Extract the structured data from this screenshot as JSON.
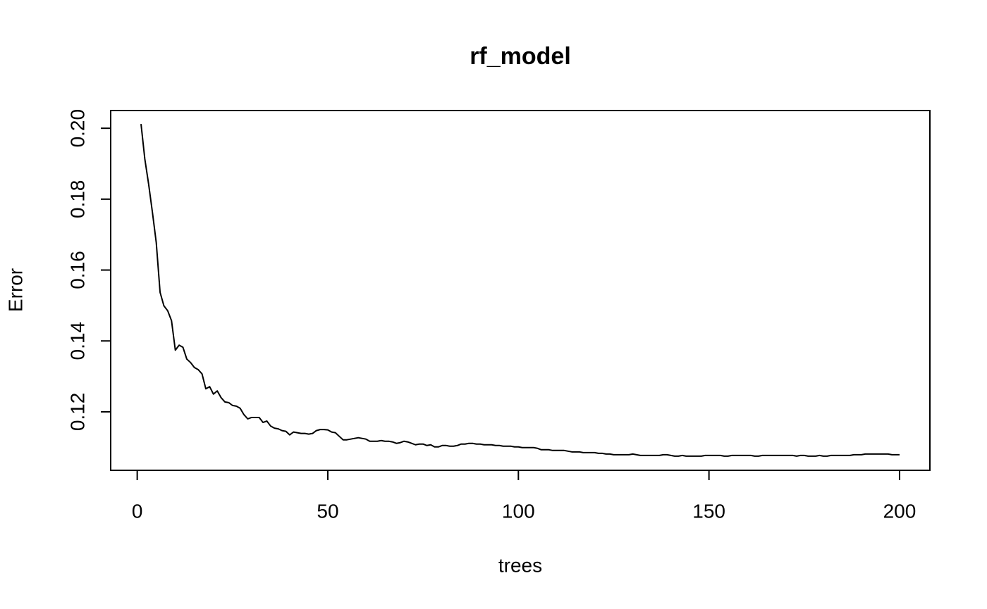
{
  "chart_data": {
    "type": "line",
    "title": "rf_model",
    "x_label": "trees",
    "y_label": "Error",
    "color": "#000000",
    "xlim": [
      -6.96,
      207.96
    ],
    "ylim": [
      0.1035,
      0.205
    ],
    "xticks": [
      0,
      50,
      100,
      150,
      200
    ],
    "yticks": [
      0.12,
      0.14,
      0.16,
      0.18,
      {
        "value": 0.2,
        "label": "0.20"
      }
    ],
    "x": [
      1,
      2,
      3,
      4,
      5,
      6,
      7,
      8,
      9,
      10,
      11,
      12,
      13,
      14,
      15,
      16,
      17,
      18,
      19,
      20,
      21,
      22,
      23,
      24,
      25,
      26,
      27,
      28,
      29,
      30,
      31,
      32,
      33,
      34,
      35,
      36,
      37,
      38,
      39,
      40,
      41,
      42,
      43,
      44,
      45,
      46,
      47,
      48,
      49,
      50,
      51,
      52,
      53,
      54,
      55,
      56,
      57,
      58,
      59,
      60,
      61,
      62,
      63,
      64,
      65,
      66,
      67,
      68,
      69,
      70,
      71,
      72,
      73,
      74,
      75,
      76,
      77,
      78,
      79,
      80,
      81,
      82,
      83,
      84,
      85,
      86,
      87,
      88,
      89,
      90,
      91,
      92,
      93,
      94,
      95,
      96,
      97,
      98,
      99,
      100,
      101,
      102,
      103,
      104,
      105,
      106,
      107,
      108,
      109,
      110,
      111,
      112,
      113,
      114,
      115,
      116,
      117,
      118,
      119,
      120,
      121,
      122,
      123,
      124,
      125,
      126,
      127,
      128,
      129,
      130,
      131,
      132,
      133,
      134,
      135,
      136,
      137,
      138,
      139,
      140,
      141,
      142,
      143,
      144,
      145,
      146,
      147,
      148,
      149,
      150,
      151,
      152,
      153,
      154,
      155,
      156,
      157,
      158,
      159,
      160,
      161,
      162,
      163,
      164,
      165,
      166,
      167,
      168,
      169,
      170,
      171,
      172,
      173,
      174,
      175,
      176,
      177,
      178,
      179,
      180,
      181,
      182,
      183,
      184,
      185,
      186,
      187,
      188,
      189,
      190,
      191,
      192,
      193,
      194,
      195,
      196,
      197,
      198,
      199,
      200
    ],
    "values": [
      0.2012,
      0.1913,
      0.1842,
      0.1762,
      0.1677,
      0.1537,
      0.1499,
      0.1485,
      0.1457,
      0.1374,
      0.1388,
      0.1382,
      0.1349,
      0.1339,
      0.1325,
      0.1319,
      0.1307,
      0.1265,
      0.1271,
      0.125,
      0.1259,
      0.124,
      0.1228,
      0.1226,
      0.1218,
      0.1216,
      0.121,
      0.1192,
      0.118,
      0.1184,
      0.1184,
      0.1184,
      0.117,
      0.1174,
      0.116,
      0.1154,
      0.1152,
      0.1147,
      0.1145,
      0.1135,
      0.1143,
      0.1141,
      0.1139,
      0.1139,
      0.1137,
      0.1139,
      0.1147,
      0.115,
      0.115,
      0.1149,
      0.1143,
      0.1141,
      0.1131,
      0.1121,
      0.1121,
      0.1123,
      0.1125,
      0.1127,
      0.1125,
      0.1123,
      0.1117,
      0.1117,
      0.1117,
      0.1119,
      0.1117,
      0.1117,
      0.1115,
      0.1111,
      0.1113,
      0.1117,
      0.1115,
      0.1111,
      0.1107,
      0.1109,
      0.1109,
      0.1105,
      0.1107,
      0.1101,
      0.1101,
      0.1105,
      0.1105,
      0.1103,
      0.1103,
      0.1105,
      0.1109,
      0.1109,
      0.1111,
      0.1111,
      0.1109,
      0.1109,
      0.1107,
      0.1107,
      0.1107,
      0.1105,
      0.1105,
      0.1103,
      0.1103,
      0.1103,
      0.1101,
      0.1101,
      0.1099,
      0.1099,
      0.1099,
      0.1099,
      0.1097,
      0.1093,
      0.1093,
      0.1093,
      0.1091,
      0.1091,
      0.1091,
      0.1091,
      0.1089,
      0.1087,
      0.1087,
      0.1087,
      0.1085,
      0.1085,
      0.1085,
      0.1085,
      0.1083,
      0.1083,
      0.1081,
      0.1081,
      0.1079,
      0.1079,
      0.1079,
      0.1079,
      0.1079,
      0.1081,
      0.1079,
      0.1077,
      0.1077,
      0.1077,
      0.1077,
      0.1077,
      0.1077,
      0.1079,
      0.1079,
      0.1077,
      0.1075,
      0.1075,
      0.1077,
      0.1075,
      0.1075,
      0.1075,
      0.1075,
      0.1075,
      0.1077,
      0.1077,
      0.1077,
      0.1077,
      0.1077,
      0.1075,
      0.1075,
      0.1077,
      0.1077,
      0.1077,
      0.1077,
      0.1077,
      0.1077,
      0.1075,
      0.1075,
      0.1077,
      0.1077,
      0.1077,
      0.1077,
      0.1077,
      0.1077,
      0.1077,
      0.1077,
      0.1077,
      0.1075,
      0.1077,
      0.1077,
      0.1075,
      0.1075,
      0.1075,
      0.1077,
      0.1075,
      0.1075,
      0.1077,
      0.1077,
      0.1077,
      0.1077,
      0.1077,
      0.1077,
      0.1079,
      0.1079,
      0.1079,
      0.1081,
      0.1081,
      0.1081,
      0.1081,
      0.1081,
      0.1081,
      0.1081,
      0.1079,
      0.1079,
      0.1079
    ]
  }
}
